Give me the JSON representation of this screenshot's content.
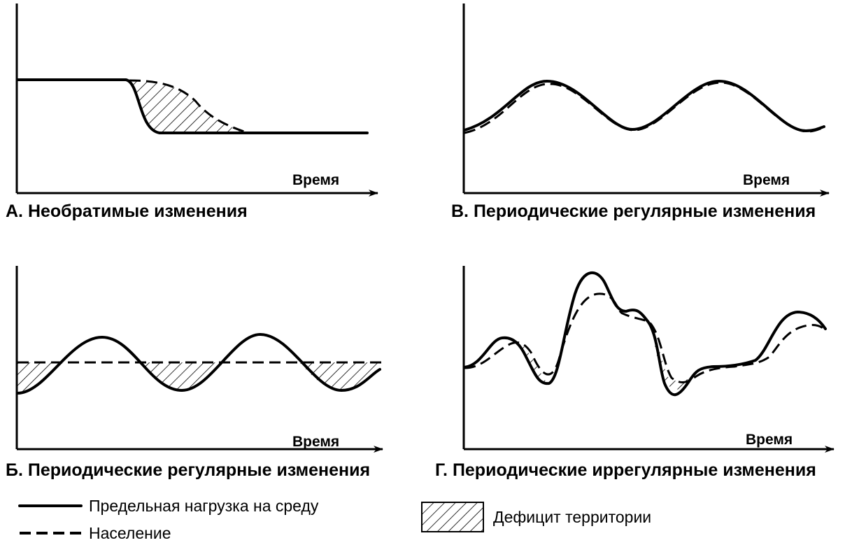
{
  "panels": {
    "a": {
      "caption": "А. Необратимые изменения",
      "time_label": "Время"
    },
    "v": {
      "caption": "В. Периодические регулярные изменения",
      "time_label": "Время"
    },
    "b": {
      "caption": "Б. Периодические регулярные изменения",
      "time_label": "Время"
    },
    "g": {
      "caption": "Г. Периодические иррегулярные изменения",
      "time_label": "Время"
    }
  },
  "legend": {
    "carrying_capacity": "Предельная нагрузка на среду",
    "population": "Население",
    "territory_deficit": "Дефицит территории"
  },
  "colors": {
    "line": "#000000",
    "background": "#ffffff"
  }
}
